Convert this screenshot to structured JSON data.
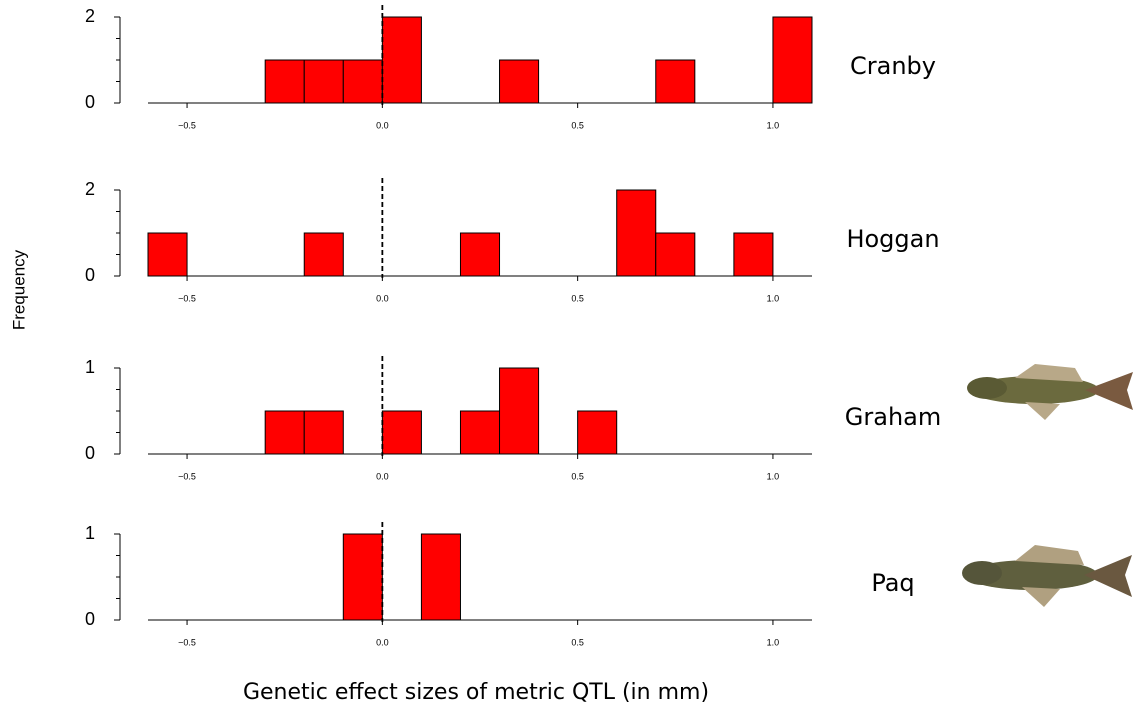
{
  "axis_labels": {
    "x": "Genetic effect sizes of metric QTL (in mm)",
    "y": "Frequency"
  },
  "chart_data": [
    {
      "type": "histogram",
      "label": "Cranby",
      "color": "#ff0000",
      "vline": 0,
      "bins": [
        -0.3,
        -0.2,
        -0.1,
        0,
        0.1,
        0.2,
        0.3,
        0.4,
        0.5,
        0.6,
        0.7,
        0.8,
        0.9,
        1.0,
        1.1
      ],
      "values": [
        1,
        1,
        1,
        2,
        0,
        0,
        1,
        0,
        0,
        0,
        1,
        0,
        0,
        2
      ],
      "xlim": [
        -0.6,
        1.1
      ],
      "xticks": [
        {
          "value": -0.5,
          "label": "−0.5"
        },
        {
          "value": 0,
          "label": "0.0"
        },
        0.5,
        {
          "value": 1,
          "label": "1.0"
        }
      ],
      "ylim": [
        0,
        2
      ],
      "yticks": [
        0,
        2
      ],
      "yminorticks": [
        0.5,
        1,
        1.5
      ]
    },
    {
      "type": "histogram",
      "label": "Hoggan",
      "color": "#ff0000",
      "vline": 0,
      "bins": [
        -0.6,
        -0.5,
        -0.4,
        -0.3,
        -0.2,
        -0.1,
        0,
        0.1,
        0.2,
        0.3,
        0.4,
        0.5,
        0.6,
        0.7,
        0.8,
        0.9,
        1.0
      ],
      "values": [
        1,
        0,
        0,
        0,
        1,
        0,
        0,
        0,
        1,
        0,
        0,
        0,
        2,
        1,
        0,
        1
      ],
      "xlim": [
        -0.6,
        1.1
      ],
      "xticks": [
        {
          "value": -0.5,
          "label": "−0.5"
        },
        {
          "value": 0,
          "label": "0.0"
        },
        0.5,
        {
          "value": 1,
          "label": "1.0"
        }
      ],
      "ylim": [
        0,
        2
      ],
      "yticks": [
        0,
        2
      ],
      "yminorticks": [
        0.5,
        1,
        1.5
      ]
    },
    {
      "type": "histogram",
      "label": "Graham",
      "color": "#ff0000",
      "vline": 0,
      "bins": [
        -0.3,
        -0.2,
        -0.1,
        0,
        0.1,
        0.2,
        0.3,
        0.4,
        0.5,
        0.6
      ],
      "values": [
        0.5,
        0.5,
        0,
        0.5,
        0,
        0.5,
        1,
        0,
        0.5
      ],
      "xlim": [
        -0.6,
        1.1
      ],
      "xticks": [
        {
          "value": -0.5,
          "label": "−0.5"
        },
        {
          "value": 0,
          "label": "0.0"
        },
        0.5,
        {
          "value": 1,
          "label": "1.0"
        }
      ],
      "ylim": [
        0,
        1
      ],
      "yticks": [
        0,
        1
      ],
      "yminorticks": [
        0.25,
        0.5,
        0.75
      ]
    },
    {
      "type": "histogram",
      "label": "Paq",
      "color": "#ff0000",
      "vline": 0,
      "bins": [
        -0.1,
        0,
        0.1,
        0.2
      ],
      "values": [
        1,
        0,
        1
      ],
      "xlim": [
        -0.6,
        1.1
      ],
      "xticks": [
        {
          "value": -0.5,
          "label": "−0.5"
        },
        {
          "value": 0,
          "label": "0.0"
        },
        0.5,
        {
          "value": 1,
          "label": "1.0"
        }
      ],
      "ylim": [
        0,
        1
      ],
      "yticks": [
        0,
        1
      ],
      "yminorticks": [
        0.25,
        0.5,
        0.75
      ]
    }
  ]
}
